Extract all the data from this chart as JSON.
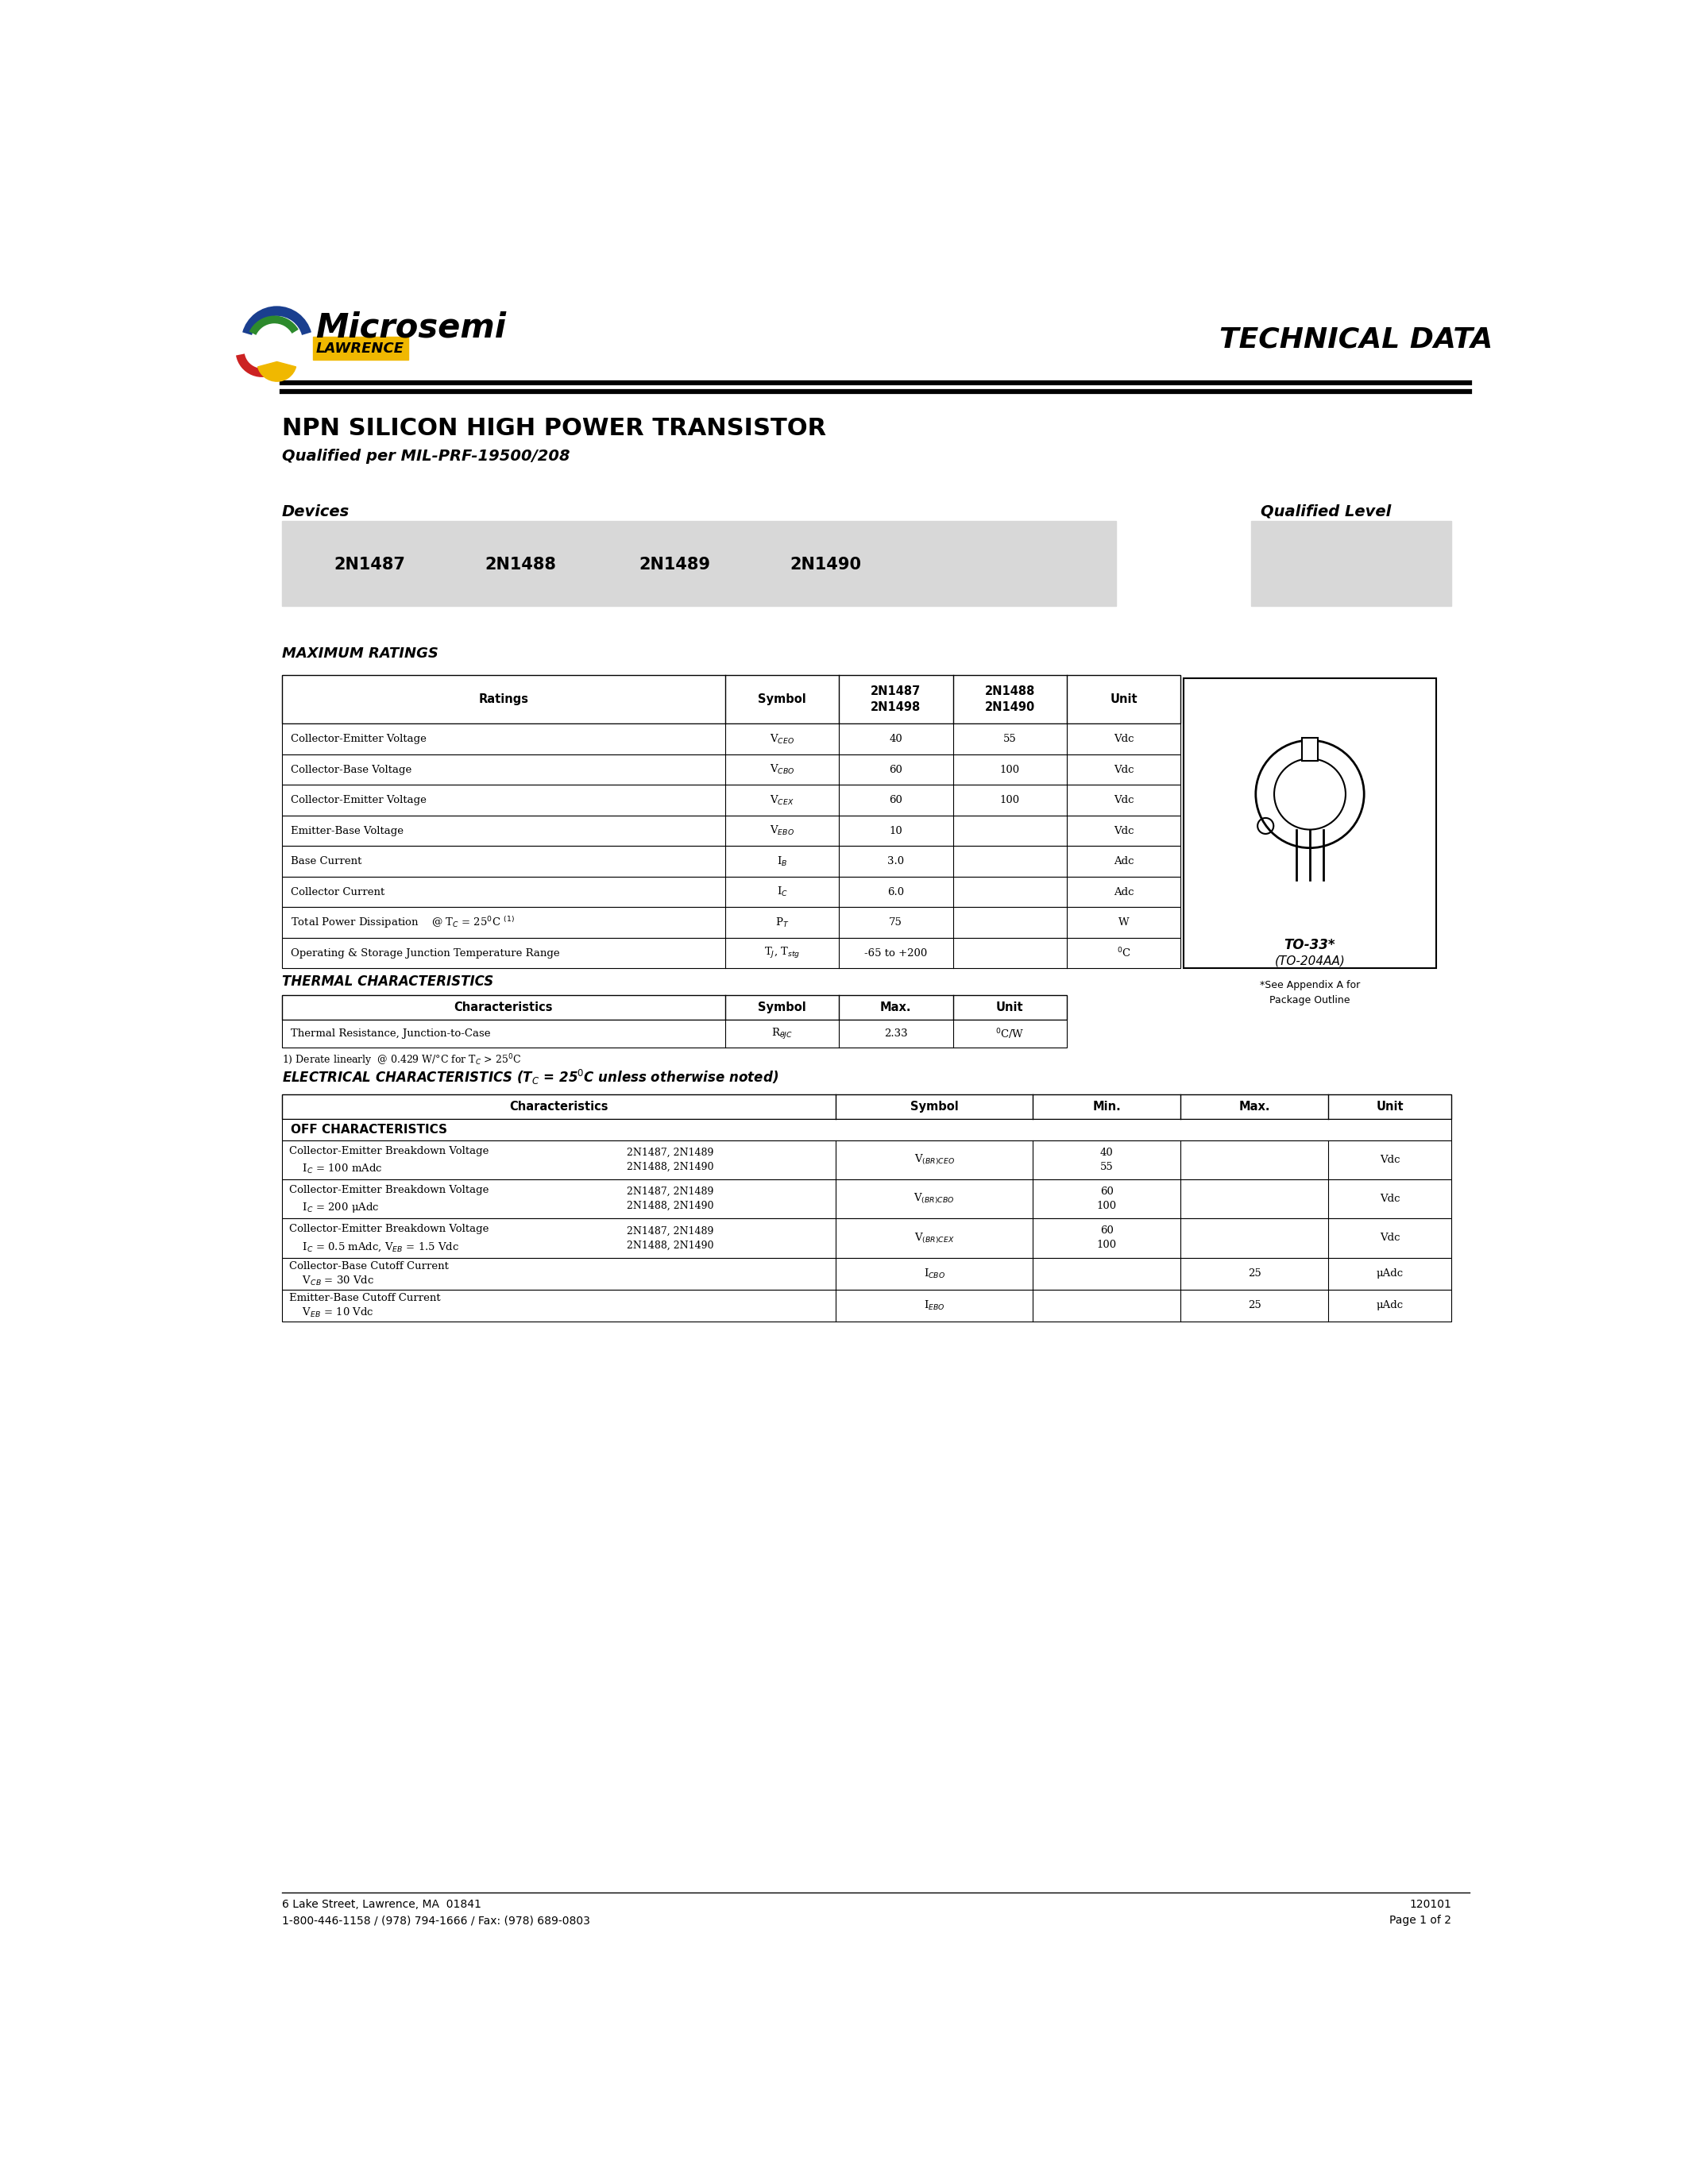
{
  "page_bg": "#ffffff",
  "title_main": "NPN SILICON HIGH POWER TRANSISTOR",
  "title_sub": "Qualified per MIL-PRF-19500/208",
  "tech_data": "TECHNICAL DATA",
  "devices_label": "Devices",
  "qual_level_label": "Qualified Level",
  "device_list": [
    "2N1487",
    "2N1488",
    "2N1489",
    "2N1490"
  ],
  "max_ratings_title": "MAXIMUM RATINGS",
  "thermal_title": "THERMAL CHARACTERISTICS",
  "thermal_note": "1) Derate linearly  @ 0.429 W/°C for Tₙ > 25°C",
  "pkg_label1": "TO-33*",
  "pkg_label2": "(TO-204AA)",
  "pkg_note1": "*See Appendix A for",
  "pkg_note2": "Package Outline",
  "elec_title": "ELECTRICAL CHARACTERISTICS (Tₙ = 25°C unless otherwise noted)",
  "elec_section1": "OFF CHARACTERISTICS",
  "footer_left1": "6 Lake Street, Lawrence, MA  01841",
  "footer_left2": "1-800-446-1158 / (978) 794-1666 / Fax: (978) 689-0803",
  "footer_right1": "120101",
  "footer_right2": "Page 1 of 2",
  "logo_colors": {
    "blue": "#1a3f8f",
    "green": "#2d8a2d",
    "red": "#cc2222",
    "yellow": "#f0b800"
  }
}
